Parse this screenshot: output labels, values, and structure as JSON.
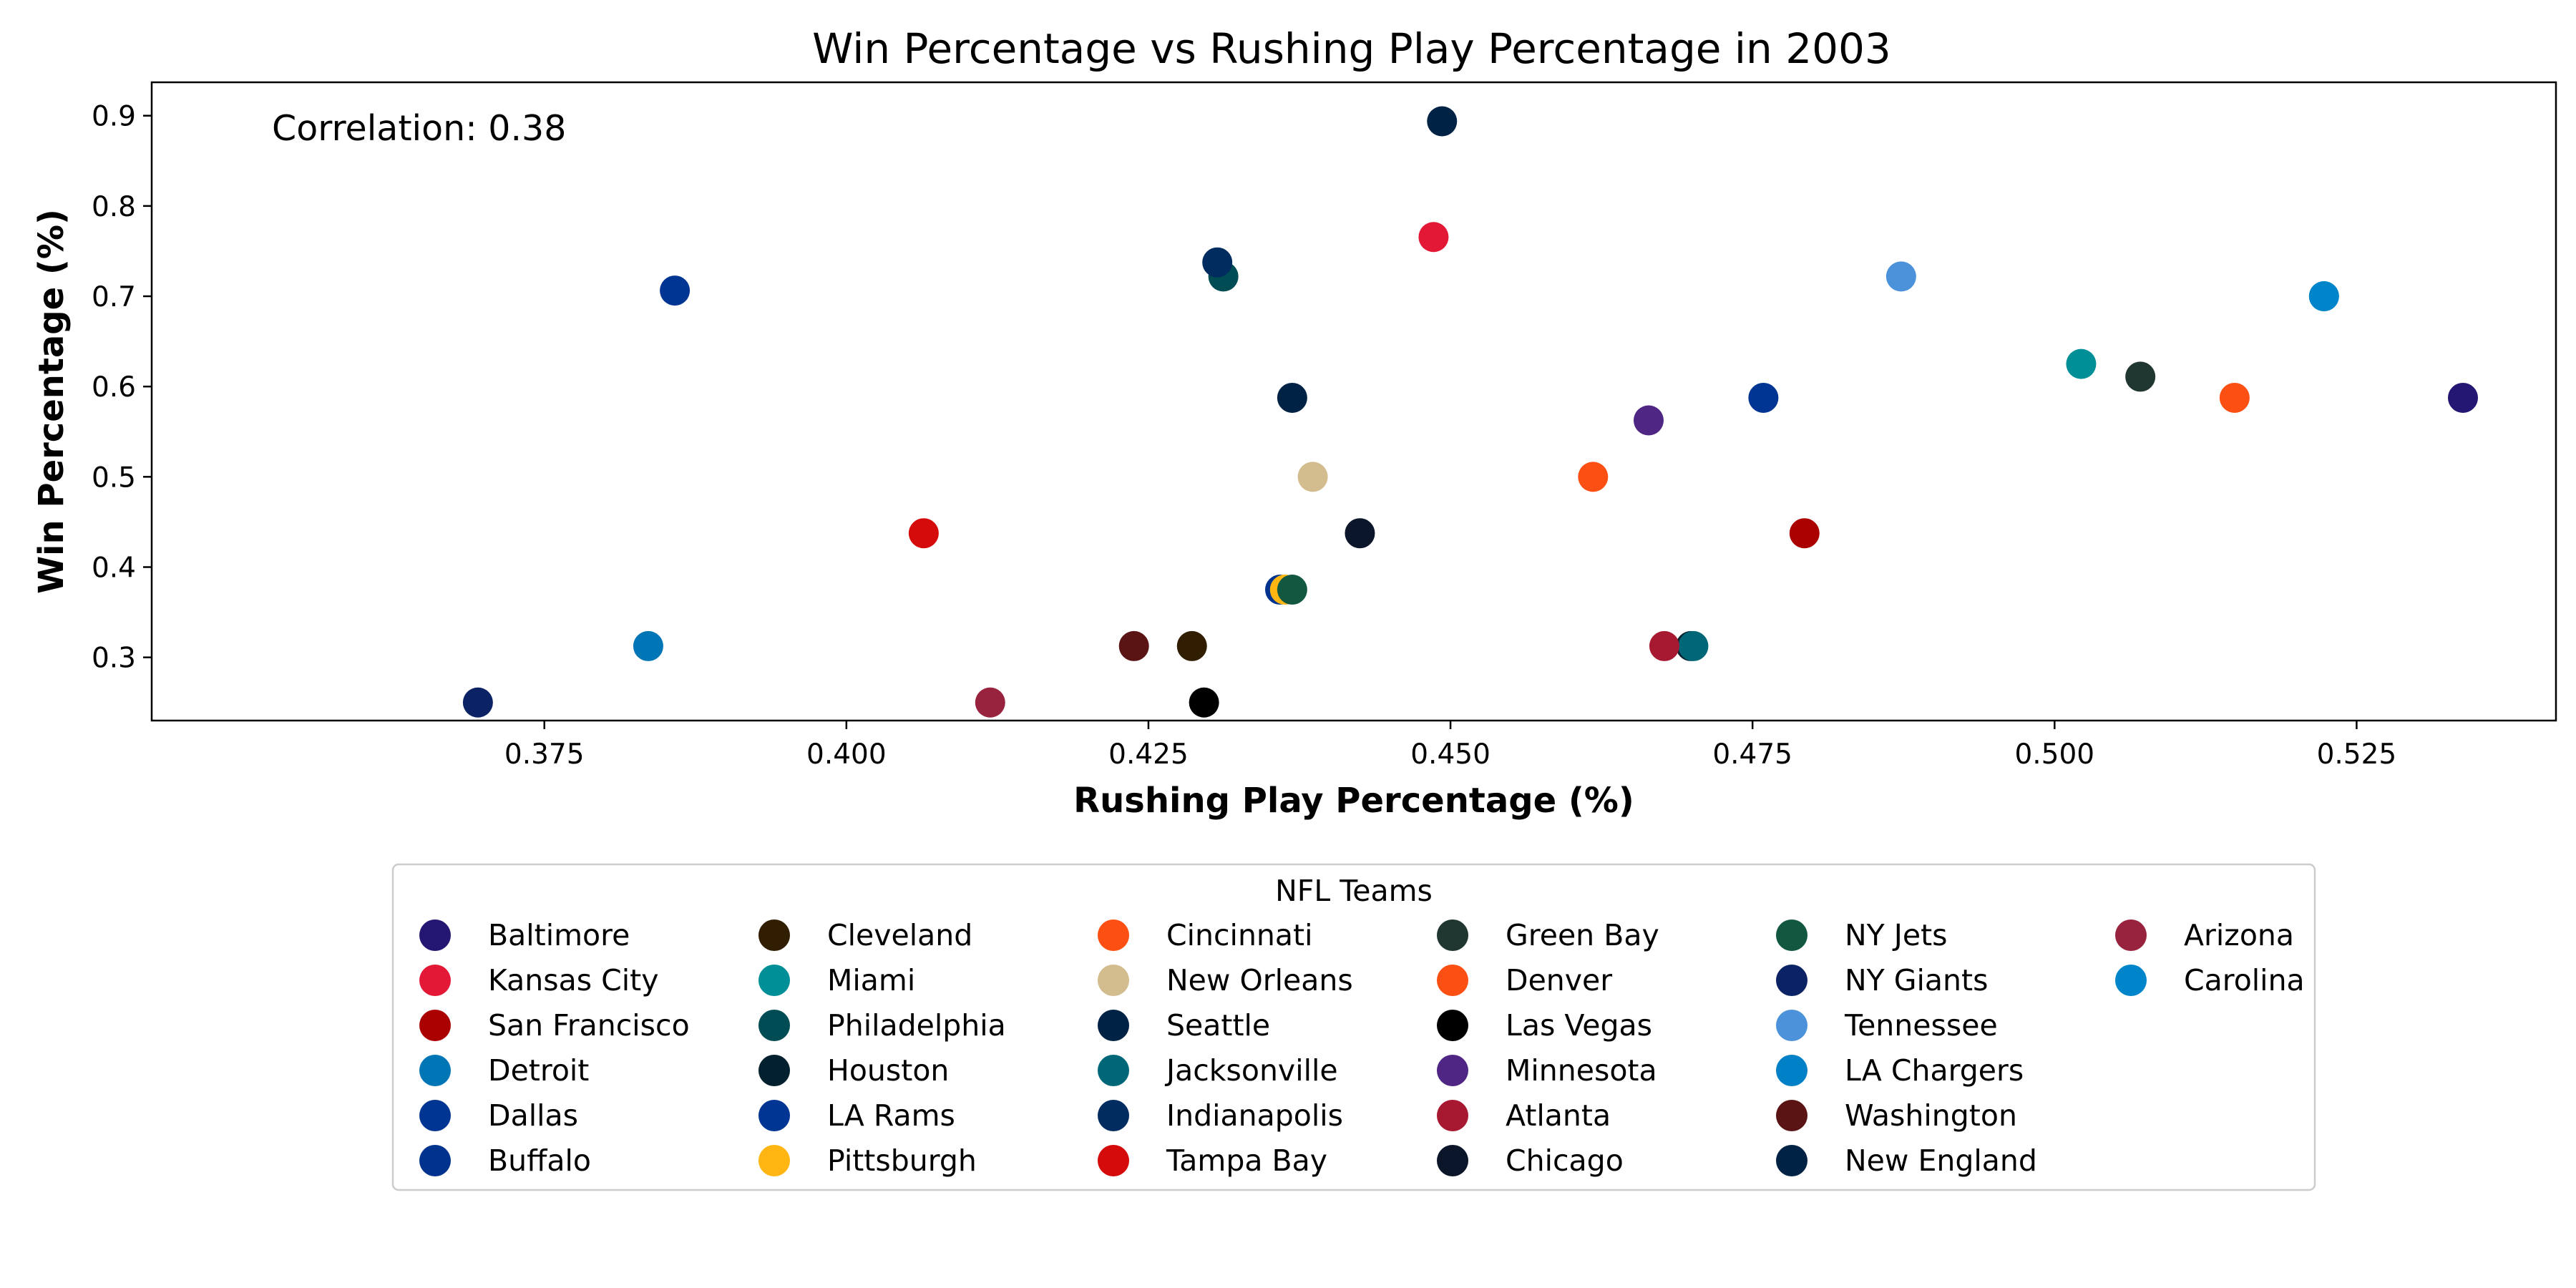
{
  "chart_data": {
    "type": "scatter",
    "title": "Win Percentage vs Rushing Play Percentage in 2003",
    "xlabel": "Rushing Play Percentage (%)",
    "ylabel": "Win Percentage (%)",
    "xlim": [
      0.3425,
      0.5415
    ],
    "ylim": [
      0.23,
      0.937
    ],
    "xticks": [
      0.375,
      0.4,
      0.425,
      0.45,
      0.475,
      0.5,
      0.525
    ],
    "xtick_labels": [
      "0.375",
      "0.400",
      "0.425",
      "0.450",
      "0.475",
      "0.500",
      "0.525"
    ],
    "yticks": [
      0.3,
      0.4,
      0.5,
      0.6,
      0.7,
      0.8,
      0.9
    ],
    "ytick_labels": [
      "0.3",
      "0.4",
      "0.5",
      "0.6",
      "0.7",
      "0.8",
      "0.9"
    ],
    "grid": false,
    "annotation": "Correlation: 0.38",
    "legend": {
      "title": "NFL Teams",
      "placement": "below plot, 6 columns",
      "columns": 6
    },
    "series": [
      {
        "name": "Baltimore",
        "color": "#241773",
        "x": 0.5338,
        "y": 0.5875
      },
      {
        "name": "Kansas City",
        "color": "#E31837",
        "x": 0.4486,
        "y": 0.7656
      },
      {
        "name": "San Francisco",
        "color": "#AA0000",
        "x": 0.4793,
        "y": 0.4375
      },
      {
        "name": "Detroit",
        "color": "#0076B6",
        "x": 0.3836,
        "y": 0.3125
      },
      {
        "name": "Dallas",
        "color": "#003594",
        "x": 0.3858,
        "y": 0.7063
      },
      {
        "name": "Buffalo",
        "color": "#00338D",
        "x": 0.4359,
        "y": 0.375
      },
      {
        "name": "Cleveland",
        "color": "#311D00",
        "x": 0.4286,
        "y": 0.3125
      },
      {
        "name": "Miami",
        "color": "#008E97",
        "x": 0.5022,
        "y": 0.625
      },
      {
        "name": "Philadelphia",
        "color": "#004C54",
        "x": 0.4312,
        "y": 0.7219
      },
      {
        "name": "Houston",
        "color": "#03202F",
        "x": 0.4699,
        "y": 0.3125
      },
      {
        "name": "LA Rams",
        "color": "#003594",
        "x": 0.4759,
        "y": 0.5875
      },
      {
        "name": "Pittsburgh",
        "color": "#FFB612",
        "x": 0.4363,
        "y": 0.375
      },
      {
        "name": "Cincinnati",
        "color": "#FB4F14",
        "x": 0.4618,
        "y": 0.5
      },
      {
        "name": "New Orleans",
        "color": "#D3BC8D",
        "x": 0.4386,
        "y": 0.5
      },
      {
        "name": "Seattle",
        "color": "#002244",
        "x": 0.4369,
        "y": 0.5875
      },
      {
        "name": "Jacksonville",
        "color": "#006778",
        "x": 0.4701,
        "y": 0.3125
      },
      {
        "name": "Indianapolis",
        "color": "#002C5F",
        "x": 0.4307,
        "y": 0.7375
      },
      {
        "name": "Tampa Bay",
        "color": "#D50A0A",
        "x": 0.4064,
        "y": 0.4375
      },
      {
        "name": "Green Bay",
        "color": "#203731",
        "x": 0.5071,
        "y": 0.6109
      },
      {
        "name": "Denver",
        "color": "#FB4F14",
        "x": 0.5149,
        "y": 0.5875
      },
      {
        "name": "Las Vegas",
        "color": "#000000",
        "x": 0.4296,
        "y": 0.25
      },
      {
        "name": "Minnesota",
        "color": "#4F2683",
        "x": 0.4664,
        "y": 0.5625
      },
      {
        "name": "Atlanta",
        "color": "#A71930",
        "x": 0.4677,
        "y": 0.3125
      },
      {
        "name": "Chicago",
        "color": "#0B162A",
        "x": 0.4425,
        "y": 0.4375
      },
      {
        "name": "NY Jets",
        "color": "#125740",
        "x": 0.4369,
        "y": 0.375
      },
      {
        "name": "NY Giants",
        "color": "#0B2265",
        "x": 0.3695,
        "y": 0.25
      },
      {
        "name": "Tennessee",
        "color": "#4B92DB",
        "x": 0.4873,
        "y": 0.7219
      },
      {
        "name": "LA Chargers",
        "color": "#0080C6",
        "x": 0.5223,
        "y": 0.7
      },
      {
        "name": "Washington",
        "color": "#5A1414",
        "x": 0.4238,
        "y": 0.3125
      },
      {
        "name": "New England",
        "color": "#002244",
        "x": 0.4493,
        "y": 0.8938
      },
      {
        "name": "Arizona",
        "color": "#97233F",
        "x": 0.4119,
        "y": 0.25
      },
      {
        "name": "Carolina",
        "color": "#0085CA",
        "x": 0.5223,
        "y": 0.7
      }
    ]
  }
}
